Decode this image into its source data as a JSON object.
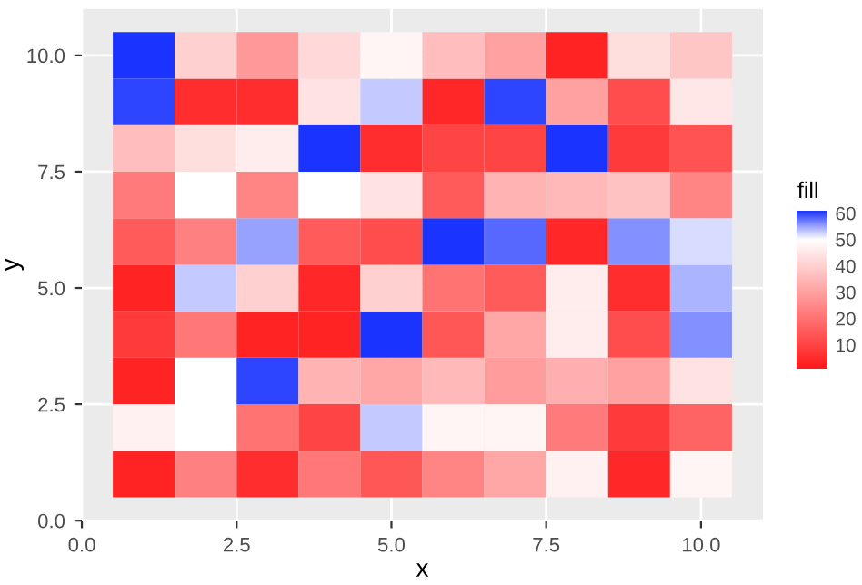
{
  "chart_data": {
    "type": "heatmap",
    "xlabel": "x",
    "ylabel": "y",
    "clabel": "fill",
    "x": [
      1,
      2,
      3,
      4,
      5,
      6,
      7,
      8,
      9,
      10
    ],
    "y": [
      10,
      9,
      8,
      7,
      6,
      5,
      4,
      3,
      2,
      1
    ],
    "cells": [
      [
        61,
        40,
        28,
        42,
        48,
        36,
        30,
        3,
        43,
        38
      ],
      [
        60,
        5,
        5,
        44,
        53,
        4,
        60,
        30,
        12,
        45
      ],
      [
        36,
        43,
        46,
        61,
        5,
        10,
        10,
        61,
        8,
        13
      ],
      [
        22,
        50,
        24,
        50,
        44,
        15,
        34,
        35,
        37,
        24
      ],
      [
        15,
        23,
        55,
        15,
        12,
        61,
        58,
        4,
        56,
        52
      ],
      [
        3,
        53,
        40,
        4,
        40,
        20,
        15,
        46,
        5,
        54
      ],
      [
        8,
        21,
        3,
        3,
        61,
        14,
        31,
        46,
        12,
        56
      ],
      [
        3,
        50,
        60,
        34,
        31,
        35,
        29,
        33,
        30,
        44
      ],
      [
        47,
        50,
        20,
        10,
        53,
        48,
        48,
        22,
        8,
        17
      ],
      [
        3,
        23,
        5,
        21,
        14,
        24,
        31,
        47,
        4,
        48
      ]
    ],
    "clim": [
      1,
      61
    ],
    "cticks": [
      10,
      20,
      30,
      40,
      50,
      60
    ],
    "xlim": [
      0,
      11
    ],
    "ylim": [
      0,
      11
    ],
    "xticks": [
      {
        "value": 0,
        "label": "0.0"
      },
      {
        "value": 2.5,
        "label": "2.5"
      },
      {
        "value": 5,
        "label": "5.0"
      },
      {
        "value": 7.5,
        "label": "7.5"
      },
      {
        "value": 10,
        "label": "10.0"
      }
    ],
    "yticks": [
      {
        "value": 0,
        "label": "0.0"
      },
      {
        "value": 2.5,
        "label": "2.5"
      },
      {
        "value": 5,
        "label": "5.0"
      },
      {
        "value": 7.5,
        "label": "7.5"
      },
      {
        "value": 10,
        "label": "10.0"
      }
    ],
    "grid": true
  }
}
